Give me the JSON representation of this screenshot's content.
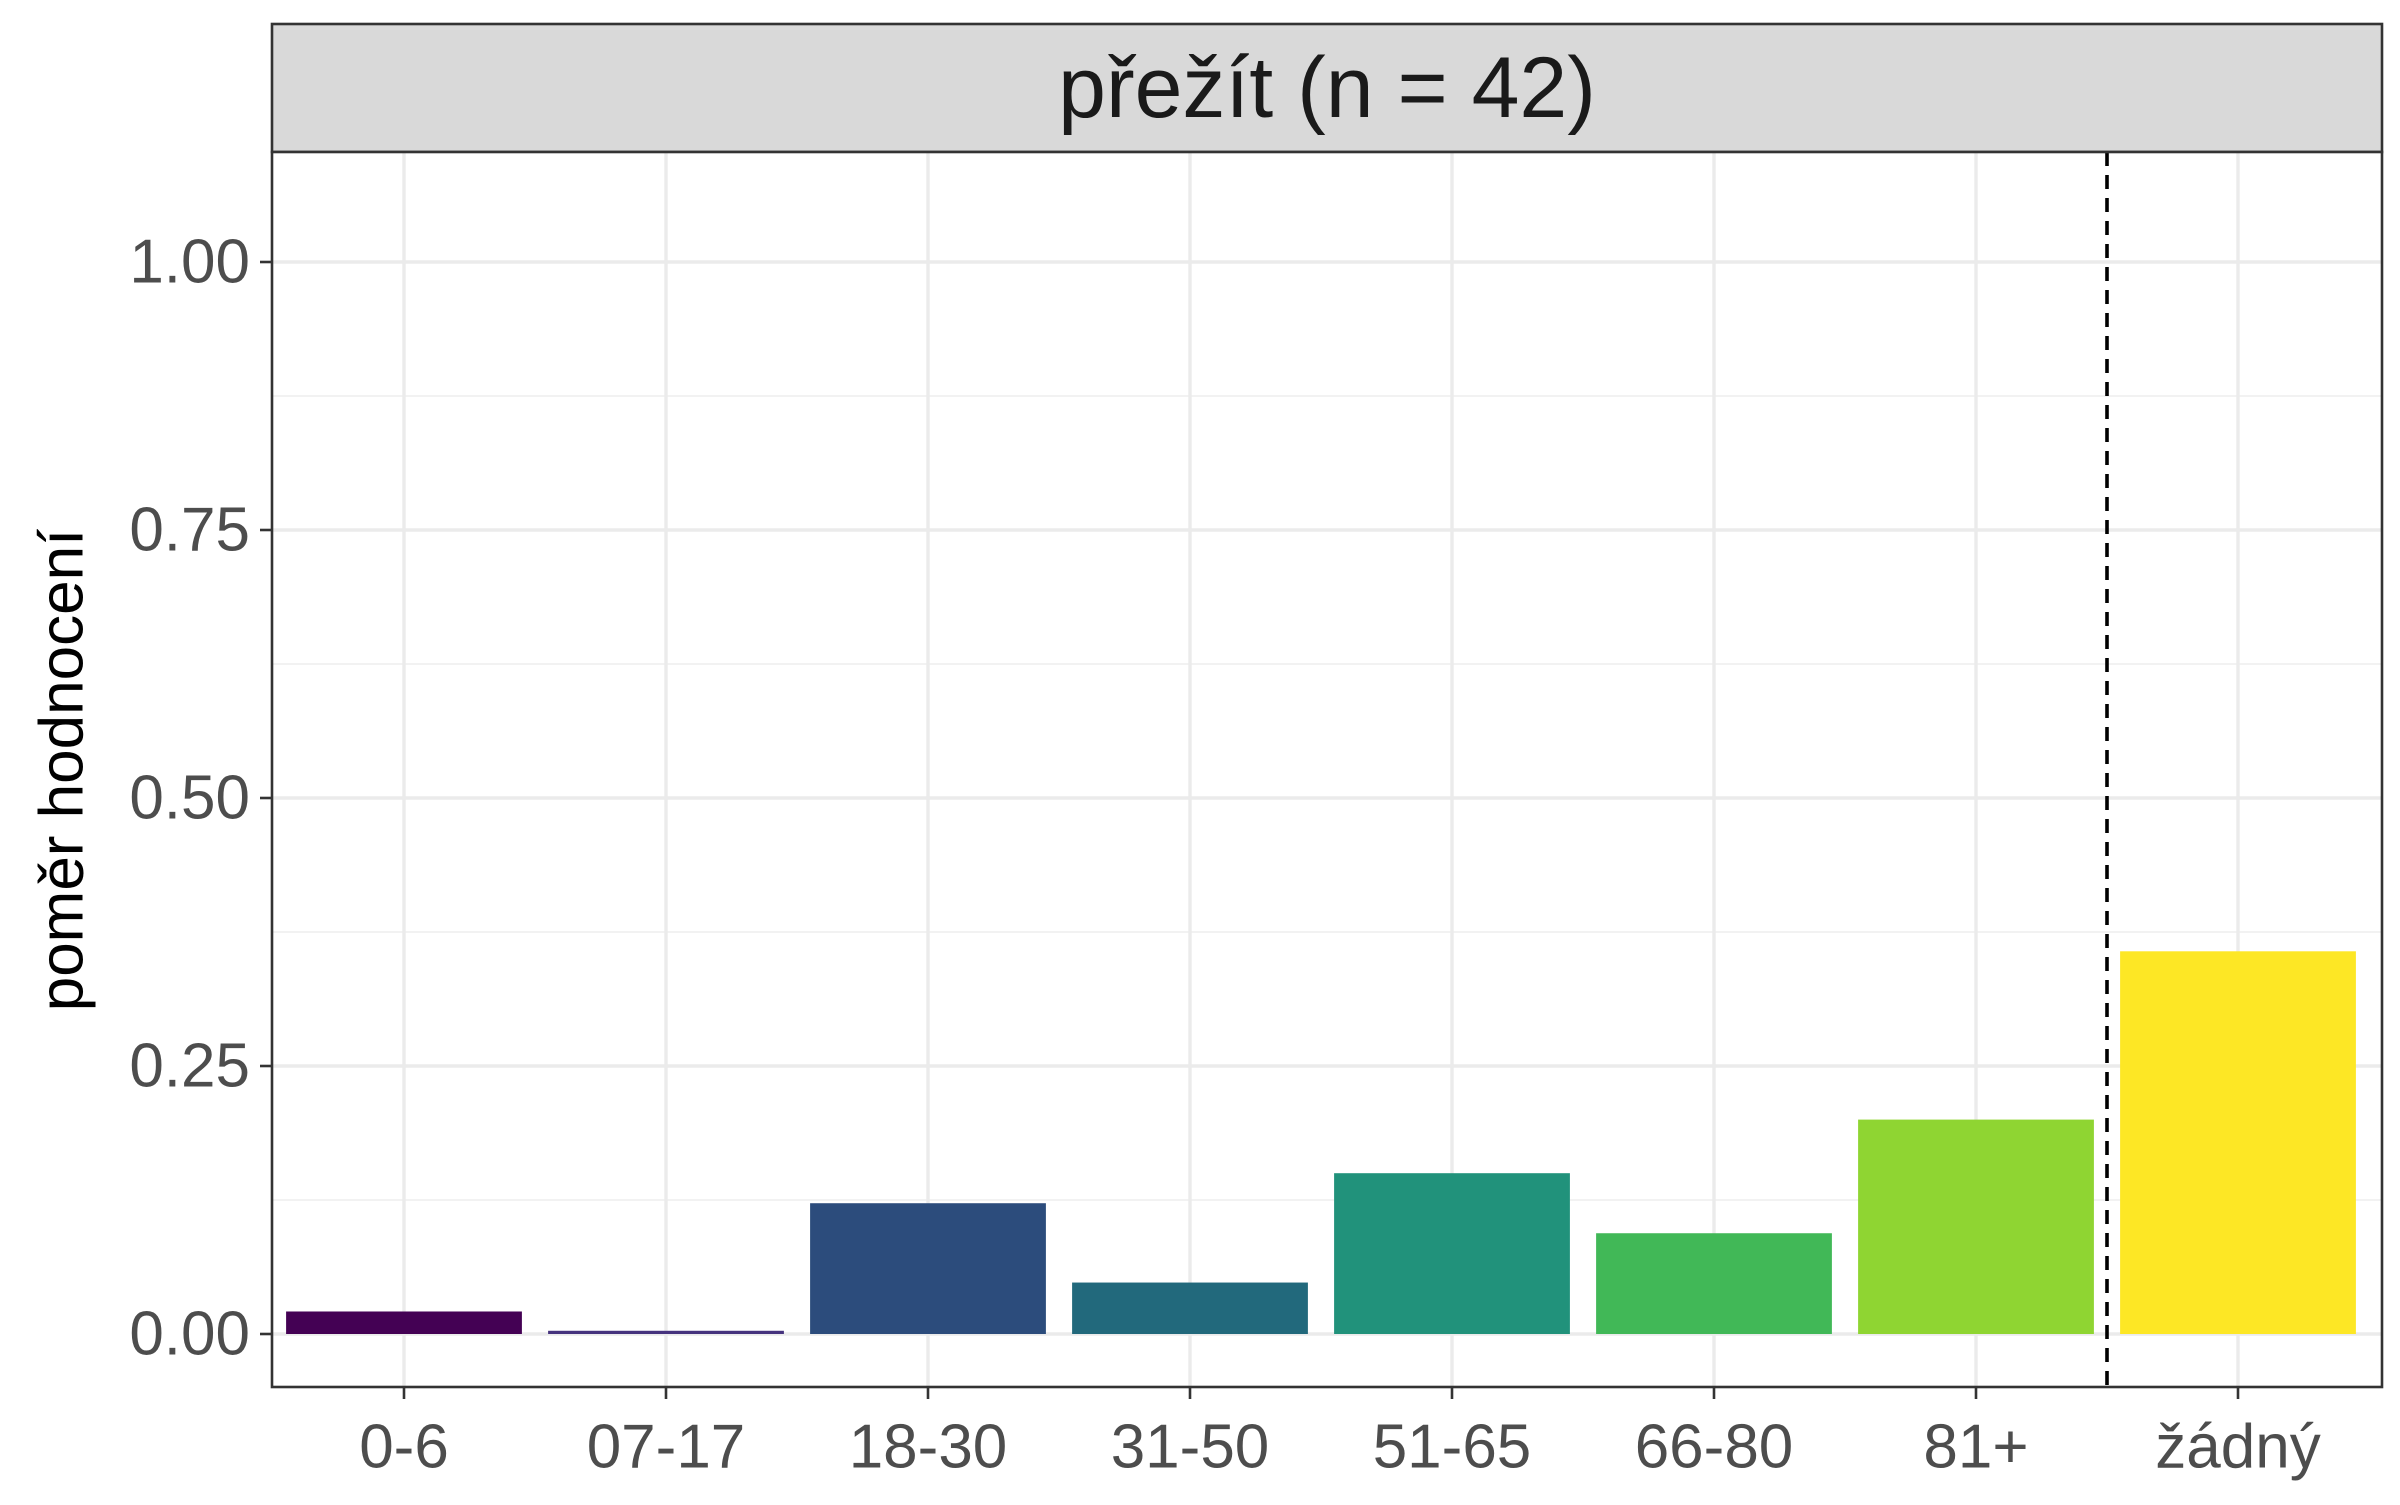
{
  "chart_data": {
    "type": "bar",
    "facet_title": "přežít (n = 42)",
    "categories": [
      "0-6",
      "07-17",
      "18-30",
      "31-50",
      "51-65",
      "66-80",
      "81+",
      "žádný"
    ],
    "values": [
      0.021,
      0.003,
      0.122,
      0.048,
      0.15,
      0.094,
      0.2,
      0.357
    ],
    "colors": [
      "#440154",
      "#46337E",
      "#2C4C7C",
      "#22697C",
      "#21927B",
      "#41B857",
      "#8FD532",
      "#FDE725"
    ],
    "xlabel": "",
    "ylabel": "poměr hodnocení",
    "ylim": [
      0,
      1.1
    ],
    "yticks": [
      0,
      0.25,
      0.5,
      0.75,
      1.0
    ],
    "ytick_labels": [
      "0.00",
      "0.25",
      "0.50",
      "0.75",
      "1.00"
    ],
    "reference_line": {
      "style": "dashed",
      "between": [
        "81+",
        "žádný"
      ]
    },
    "grid": true,
    "legend": "none"
  }
}
